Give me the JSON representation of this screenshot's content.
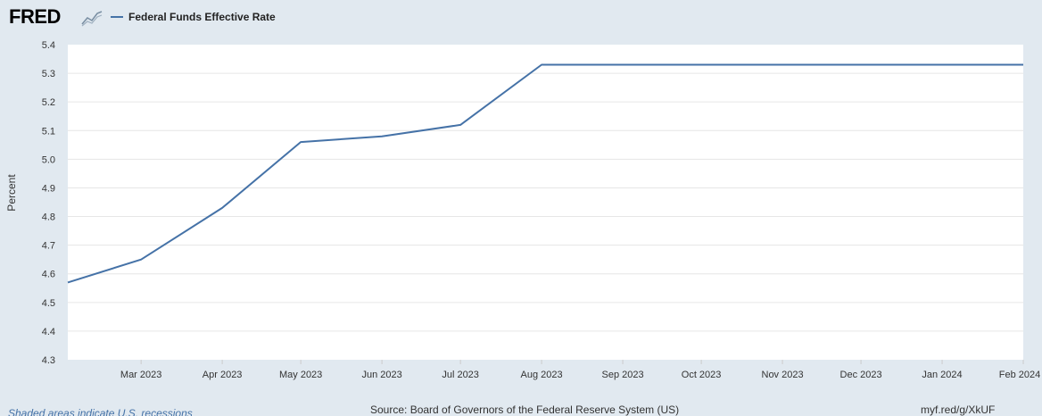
{
  "header": {
    "logo_text": "FRED",
    "logo_icon": "chart-trend-icon"
  },
  "footer": {
    "recessions_note": "Shaded areas indicate U.S. recessions",
    "source": "Source: Board of Governors of the Federal Reserve System (US)",
    "short_url": "myf.red/g/XkUF"
  },
  "colors": {
    "series": "#4572a7",
    "background": "#e1e9f0",
    "plot_background": "#ffffff",
    "grid": "#e6e6e6"
  },
  "chart_data": {
    "type": "line",
    "title": "",
    "xlabel": "",
    "ylabel": "Percent",
    "ylim": [
      4.3,
      5.4
    ],
    "yticks": [
      "4.3",
      "4.4",
      "4.5",
      "4.6",
      "4.7",
      "4.8",
      "4.9",
      "5.0",
      "5.1",
      "5.2",
      "5.3",
      "5.4"
    ],
    "xticks": [
      "Mar 2023",
      "Apr 2023",
      "May 2023",
      "Jun 2023",
      "Jul 2023",
      "Aug 2023",
      "Sep 2023",
      "Oct 2023",
      "Nov 2023",
      "Dec 2023",
      "Jan 2024",
      "Feb 2024"
    ],
    "x": [
      "2023-02-01",
      "2023-03-01",
      "2023-04-01",
      "2023-05-01",
      "2023-06-01",
      "2023-07-01",
      "2023-08-01",
      "2023-09-01",
      "2023-10-01",
      "2023-11-01",
      "2023-12-01",
      "2024-01-01",
      "2024-02-01"
    ],
    "grid": true,
    "legend": "top-left",
    "series": [
      {
        "name": "Federal Funds Effective Rate",
        "values": [
          4.57,
          4.65,
          4.83,
          5.06,
          5.08,
          5.12,
          5.33,
          5.33,
          5.33,
          5.33,
          5.33,
          5.33,
          5.33
        ]
      }
    ]
  }
}
